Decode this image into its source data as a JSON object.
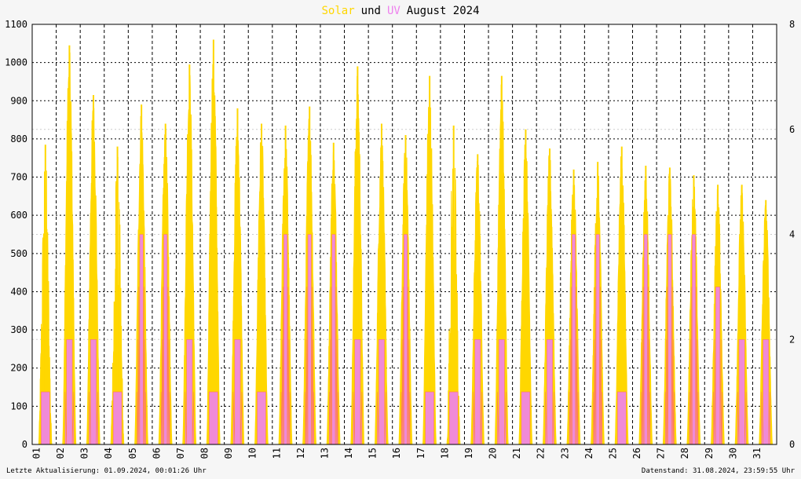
{
  "chart_data": {
    "type": "area",
    "title_parts": [
      {
        "text": "Solar",
        "color": "#ffd700"
      },
      {
        "text": "und",
        "color": "#000000"
      },
      {
        "text": "UV",
        "color": "#ee82ee"
      },
      {
        "text": "August 2024",
        "color": "#000000"
      }
    ],
    "x_ticks": [
      "01",
      "02",
      "03",
      "04",
      "05",
      "06",
      "07",
      "08",
      "09",
      "10",
      "11",
      "12",
      "13",
      "14",
      "15",
      "16",
      "17",
      "18",
      "19",
      "20",
      "21",
      "22",
      "23",
      "24",
      "25",
      "26",
      "27",
      "28",
      "29",
      "30",
      "31"
    ],
    "y_left": {
      "ticks": [
        0,
        100,
        200,
        300,
        400,
        500,
        600,
        700,
        800,
        900,
        1000,
        1100
      ],
      "ylim": [
        0,
        1100
      ]
    },
    "y_right": {
      "ticks": [
        0,
        2,
        4,
        6,
        8
      ],
      "ylim": [
        0,
        8
      ]
    },
    "grid": true,
    "footer_left": "Letzte Aktualisierung: 01.09.2024, 00:01:26 Uhr",
    "footer_right": "Datenstand: 31.08.2024, 23:59:55 Uhr",
    "series": [
      {
        "axis": "left",
        "color": "#ffd700",
        "days": [
          {
            "day": 1,
            "peak": 785,
            "shape": "cloudy"
          },
          {
            "day": 2,
            "peak": 1045,
            "shape": "clear"
          },
          {
            "day": 3,
            "peak": 915,
            "shape": "clear"
          },
          {
            "day": 4,
            "peak": 780,
            "shape": "cloudy"
          },
          {
            "day": 5,
            "peak": 890,
            "shape": "clear"
          },
          {
            "day": 6,
            "peak": 840,
            "shape": "clear"
          },
          {
            "day": 7,
            "peak": 995,
            "shape": "clear"
          },
          {
            "day": 8,
            "peak": 1060,
            "shape": "clear"
          },
          {
            "day": 9,
            "peak": 880,
            "shape": "clear"
          },
          {
            "day": 10,
            "peak": 840,
            "shape": "clear"
          },
          {
            "day": 11,
            "peak": 835,
            "shape": "clear"
          },
          {
            "day": 12,
            "peak": 885,
            "shape": "clear"
          },
          {
            "day": 13,
            "peak": 790,
            "shape": "clear"
          },
          {
            "day": 14,
            "peak": 990,
            "shape": "clear"
          },
          {
            "day": 15,
            "peak": 840,
            "shape": "clear"
          },
          {
            "day": 16,
            "peak": 810,
            "shape": "clear"
          },
          {
            "day": 17,
            "peak": 965,
            "shape": "clear"
          },
          {
            "day": 18,
            "peak": 835,
            "shape": "cloudy"
          },
          {
            "day": 19,
            "peak": 760,
            "shape": "clear"
          },
          {
            "day": 20,
            "peak": 965,
            "shape": "clear"
          },
          {
            "day": 21,
            "peak": 825,
            "shape": "clear"
          },
          {
            "day": 22,
            "peak": 775,
            "shape": "clear"
          },
          {
            "day": 23,
            "peak": 720,
            "shape": "clear"
          },
          {
            "day": 24,
            "peak": 740,
            "shape": "clear"
          },
          {
            "day": 25,
            "peak": 780,
            "shape": "clear"
          },
          {
            "day": 26,
            "peak": 730,
            "shape": "clear"
          },
          {
            "day": 27,
            "peak": 725,
            "shape": "clear"
          },
          {
            "day": 28,
            "peak": 705,
            "shape": "clear"
          },
          {
            "day": 29,
            "peak": 680,
            "shape": "clear"
          },
          {
            "day": 30,
            "peak": 680,
            "shape": "clear"
          },
          {
            "day": 31,
            "peak": 640,
            "shape": "clear"
          }
        ]
      },
      {
        "axis": "right",
        "color": "#ee82ee",
        "days": [
          {
            "day": 1,
            "peak": 1
          },
          {
            "day": 2,
            "peak": 2
          },
          {
            "day": 3,
            "peak": 2
          },
          {
            "day": 4,
            "peak": 1
          },
          {
            "day": 5,
            "peak": 4
          },
          {
            "day": 6,
            "peak": 4
          },
          {
            "day": 7,
            "peak": 2
          },
          {
            "day": 8,
            "peak": 1
          },
          {
            "day": 9,
            "peak": 2
          },
          {
            "day": 10,
            "peak": 1
          },
          {
            "day": 11,
            "peak": 4
          },
          {
            "day": 12,
            "peak": 4
          },
          {
            "day": 13,
            "peak": 4
          },
          {
            "day": 14,
            "peak": 2
          },
          {
            "day": 15,
            "peak": 2
          },
          {
            "day": 16,
            "peak": 4
          },
          {
            "day": 17,
            "peak": 1
          },
          {
            "day": 18,
            "peak": 1
          },
          {
            "day": 19,
            "peak": 2
          },
          {
            "day": 20,
            "peak": 2
          },
          {
            "day": 21,
            "peak": 1
          },
          {
            "day": 22,
            "peak": 2
          },
          {
            "day": 23,
            "peak": 4
          },
          {
            "day": 24,
            "peak": 4
          },
          {
            "day": 25,
            "peak": 1
          },
          {
            "day": 26,
            "peak": 4
          },
          {
            "day": 27,
            "peak": 4
          },
          {
            "day": 28,
            "peak": 4
          },
          {
            "day": 29,
            "peak": 3
          },
          {
            "day": 30,
            "peak": 2
          },
          {
            "day": 31,
            "peak": 2
          }
        ]
      }
    ]
  }
}
